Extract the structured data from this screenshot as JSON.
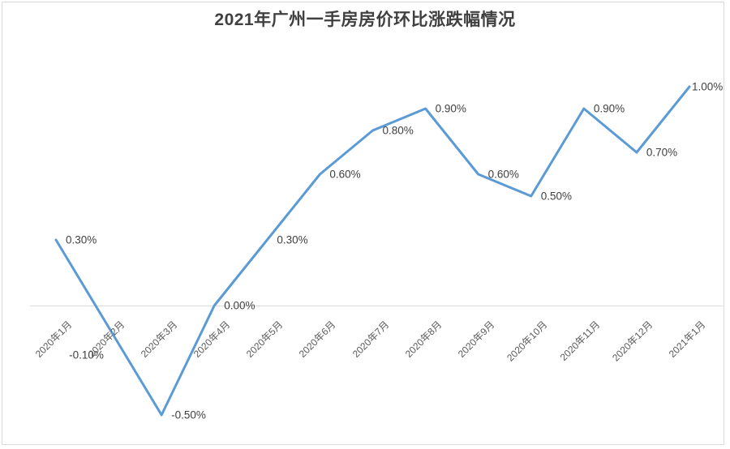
{
  "title": "2021年广州一手房房价环比涨跌幅情况",
  "chart_data": {
    "type": "line",
    "title": "2021年广州一手房房价环比涨跌幅情况",
    "categories": [
      "2020年1月",
      "2020年2月",
      "2020年3月",
      "2020年4月",
      "2020年5月",
      "2020年6月",
      "2020年7月",
      "2020年8月",
      "2020年9月",
      "2020年10月",
      "2020年11月",
      "2020年12月",
      "2021年1月"
    ],
    "values": [
      0.3,
      -0.1,
      -0.5,
      0.0,
      0.3,
      0.6,
      0.8,
      0.9,
      0.6,
      0.5,
      0.9,
      0.7,
      1.0
    ],
    "point_labels": [
      "0.30%",
      "-0.10%",
      "-0.50%",
      "0.00%",
      "0.30%",
      "0.60%",
      "0.80%",
      "0.90%",
      "0.60%",
      "0.50%",
      "0.90%",
      "0.70%",
      "1.00%"
    ],
    "unit": "%",
    "xlabel": "",
    "ylabel": "",
    "ylim": [
      -0.7,
      1.15
    ],
    "legend": "none",
    "grid": "zero-baseline-only",
    "x_tick_rotation": 45,
    "line_color": "#5b9bd5",
    "baseline_color": "#d9d9d9",
    "border_color": "#d9d9d9",
    "title_color": "#404040",
    "label_color": "#404040",
    "axis_label_color": "#595959"
  }
}
